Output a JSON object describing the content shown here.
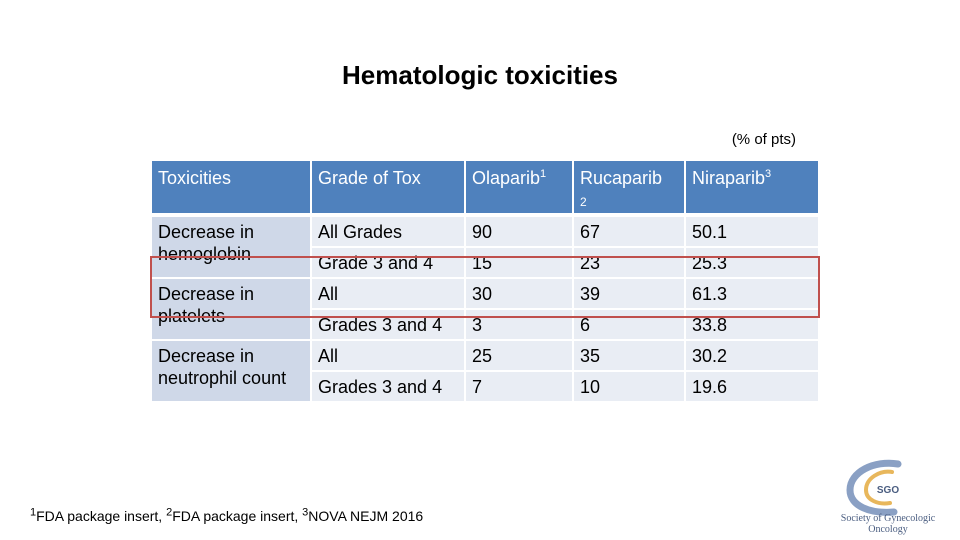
{
  "title": "Hematologic toxicities",
  "units_note": "(% of pts)",
  "table": {
    "header": {
      "toxicities": "Toxicities",
      "grade": "Grade of Tox",
      "olaparib": "Olaparib",
      "olaparib_sup": "1",
      "rucaparib": "Rucaparib",
      "rucaparib_sup": "2",
      "niraparib": "Niraparib",
      "niraparib_sup": "3"
    },
    "rows": [
      {
        "toxicity": "Decrease in hemoglobin",
        "grade": "All Grades",
        "olaparib": "90",
        "rucaparib": "67",
        "niraparib": "50.1"
      },
      {
        "toxicity": "",
        "grade": "Grade 3 and 4",
        "olaparib": "15",
        "rucaparib": "23",
        "niraparib": "25.3"
      },
      {
        "toxicity": "Decrease in platelets",
        "grade": "All",
        "olaparib": "30",
        "rucaparib": "39",
        "niraparib": "61.3"
      },
      {
        "toxicity": "",
        "grade": "Grades 3 and 4",
        "olaparib": "3",
        "rucaparib": "6",
        "niraparib": "33.8"
      },
      {
        "toxicity": "Decrease in neutrophil count",
        "grade": "All",
        "olaparib": "25",
        "rucaparib": "35",
        "niraparib": "30.2"
      },
      {
        "toxicity": "",
        "grade": "Grades 3 and 4",
        "olaparib": "7",
        "rucaparib": "10",
        "niraparib": "19.6"
      }
    ]
  },
  "footnote": {
    "n1": "1",
    "t1": "FDA package insert, ",
    "n2": "2",
    "t2": "FDA package insert, ",
    "n3": "3",
    "t3": "NOVA NEJM 2016"
  },
  "logo": {
    "initials": "SGO",
    "name": "Society of Gynecologic Oncology",
    "color": "#4a5d80"
  }
}
